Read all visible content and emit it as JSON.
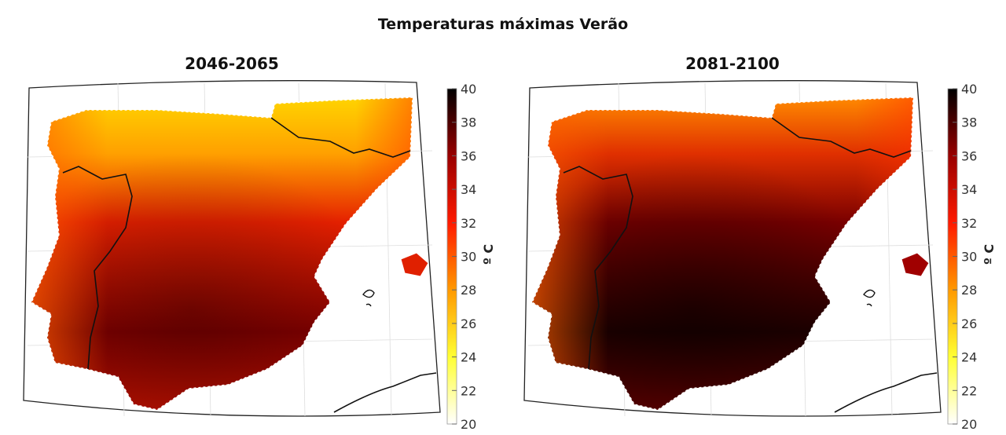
{
  "figure": {
    "title": "Temperaturas máximas Verão"
  },
  "chart_data": {
    "type": "heatmap",
    "title": "Temperaturas máximas Verão",
    "panels": [
      {
        "subtitle": "2046-2065",
        "intensity": 0.6
      },
      {
        "subtitle": "2081-2100",
        "intensity": 1.0
      }
    ],
    "colorbar": {
      "label": "º C",
      "range": [
        20,
        40
      ],
      "ticks": [
        "20",
        "22",
        "24",
        "26",
        "28",
        "30",
        "32",
        "34",
        "36",
        "38",
        "40"
      ],
      "colormap": [
        "#ffffff",
        "#ffff33",
        "#ff9900",
        "#ff1a00",
        "#990000",
        "#000000"
      ]
    },
    "grid": true
  }
}
